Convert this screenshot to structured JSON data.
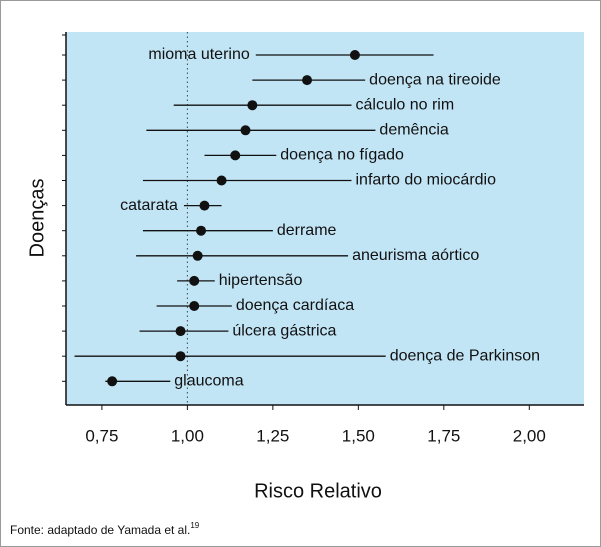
{
  "chart_data": {
    "type": "forest",
    "xlabel": "Risco Relativo",
    "ylabel": "Doenças",
    "categories": [
      "mioma uterino",
      "doença na tireoide",
      "cálculo no rim",
      "demência",
      "doença no fígado",
      "infarto do miocárdio",
      "catarata",
      "derrame",
      "aneurisma aórtico",
      "hipertensão",
      "doença cardíaca",
      "úlcera gástrica",
      "doença de Parkinson",
      "glaucoma"
    ],
    "values": [
      1.49,
      1.35,
      1.19,
      1.17,
      1.14,
      1.1,
      1.05,
      1.04,
      1.03,
      1.02,
      1.02,
      0.98,
      0.98,
      0.78
    ],
    "ci_low": [
      1.2,
      1.19,
      0.96,
      0.88,
      1.05,
      0.87,
      0.99,
      0.87,
      0.85,
      0.97,
      0.91,
      0.86,
      0.67,
      0.76
    ],
    "ci_high": [
      1.72,
      1.52,
      1.48,
      1.55,
      1.26,
      1.48,
      1.1,
      1.25,
      1.47,
      1.08,
      1.13,
      1.12,
      1.58,
      0.95
    ],
    "reference_line": 1,
    "xlim": [
      0.645,
      2.16
    ],
    "xticks": [
      {
        "value": 0.75,
        "label": "0,75"
      },
      {
        "value": 1.0,
        "label": "1,00"
      },
      {
        "value": 1.25,
        "label": "1,25"
      },
      {
        "value": 1.5,
        "label": "1,50"
      },
      {
        "value": 1.75,
        "label": "1,75"
      },
      {
        "value": 2.0,
        "label": "2,00"
      }
    ],
    "color": "#111111",
    "background": "#c2e5f6"
  },
  "source": "Fonte: adaptado de Yamada et al.",
  "source_ref": "19"
}
